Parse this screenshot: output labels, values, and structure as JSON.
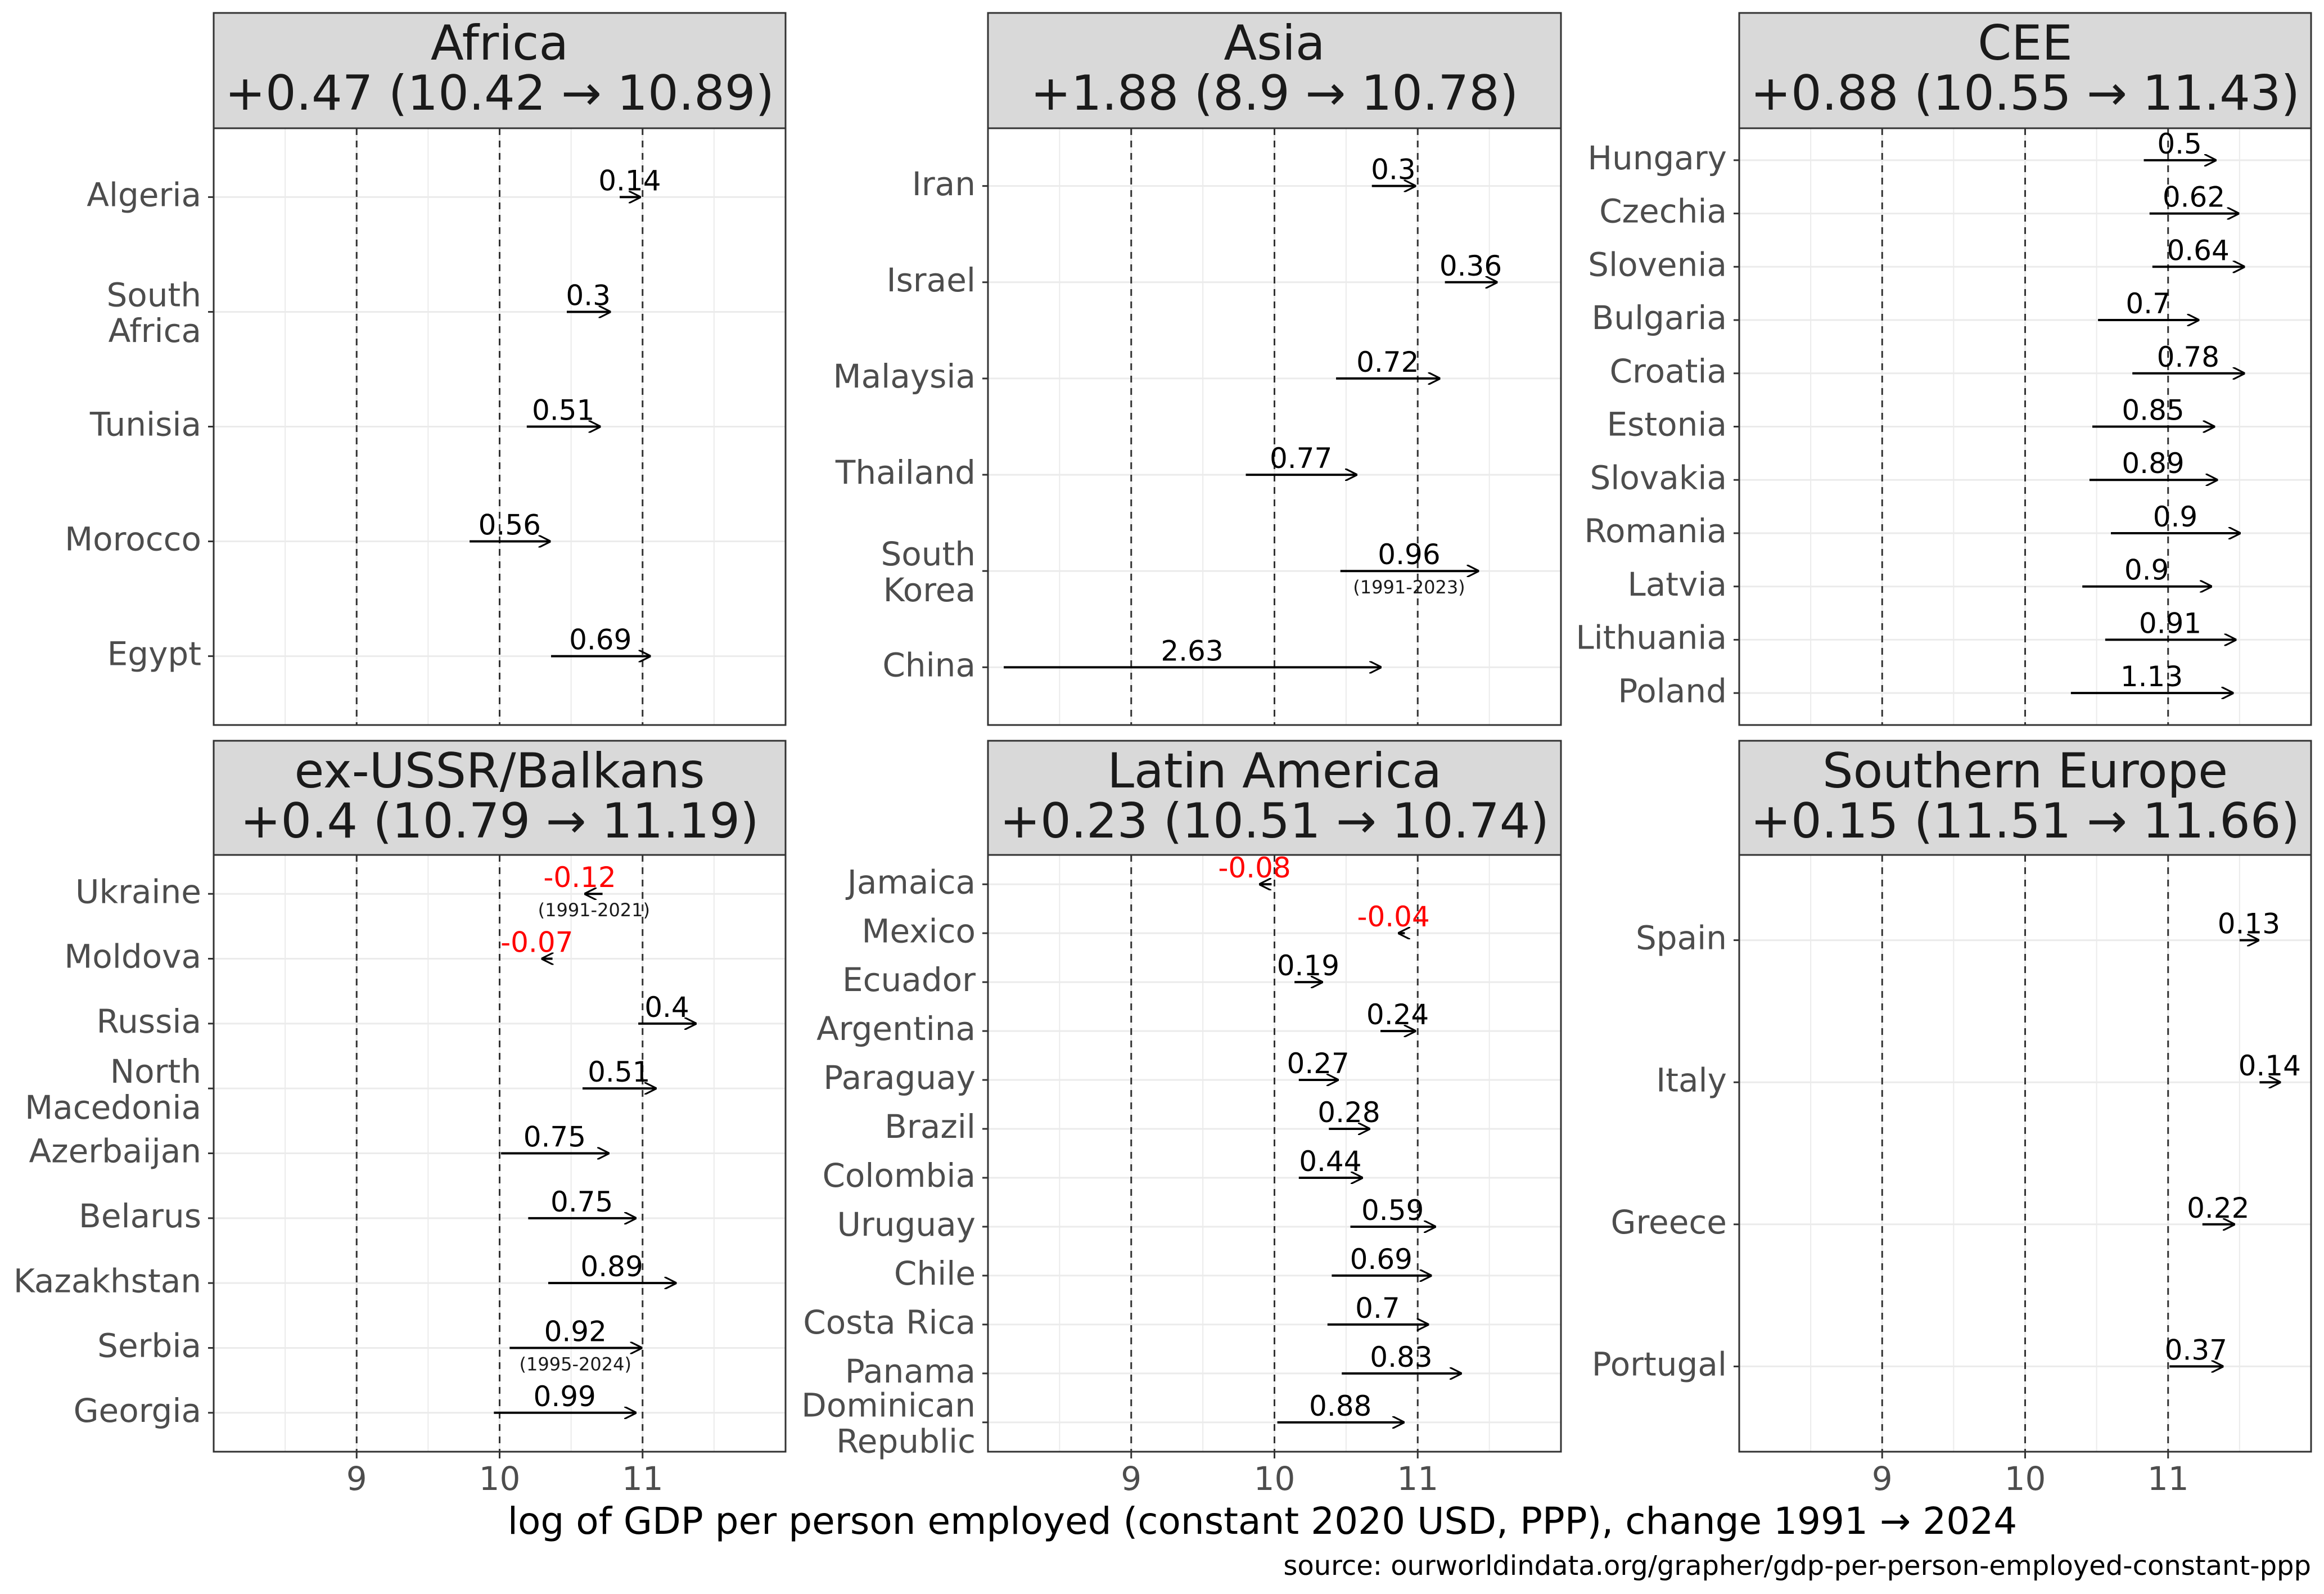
{
  "chart_data": {
    "type": "arrow-dumbbell",
    "xlabel": "log of GDP per person employed (constant 2020 USD, PPP), change 1991 → 2024",
    "source": "source: ourworldindata.org/grapher/gdp-per-person-employed-constant-ppp",
    "xlim": [
      8,
      12
    ],
    "x_ticks": [
      9,
      10,
      11
    ],
    "colors": {
      "positive": "#000000",
      "negative": "#ff0000",
      "strip_bg": "#d9d9d9",
      "grid": "#ebebeb",
      "panel_border": "#333333"
    },
    "panels": [
      {
        "name": "Africa",
        "summary": "+0.47 (10.42 → 10.89)",
        "rows": [
          {
            "country": "Egypt",
            "start": 10.36,
            "end": 11.05,
            "label": "0.69"
          },
          {
            "country": "Morocco",
            "start": 9.79,
            "end": 10.35,
            "label": "0.56"
          },
          {
            "country": "Tunisia",
            "start": 10.19,
            "end": 10.7,
            "label": "0.51"
          },
          {
            "country": "South Africa",
            "start": 10.47,
            "end": 10.77,
            "label": "0.3"
          },
          {
            "country": "Algeria",
            "start": 10.84,
            "end": 10.98,
            "label": "0.14"
          }
        ]
      },
      {
        "name": "Asia",
        "summary": "+1.88 (8.9 → 10.78)",
        "rows": [
          {
            "country": "China",
            "start": 8.11,
            "end": 10.74,
            "label": "2.63"
          },
          {
            "country": "South Korea",
            "start": 10.46,
            "end": 11.42,
            "label": "0.96",
            "note": "(1991-2023)"
          },
          {
            "country": "Thailand",
            "start": 9.8,
            "end": 10.57,
            "label": "0.77"
          },
          {
            "country": "Malaysia",
            "start": 10.43,
            "end": 11.15,
            "label": "0.72"
          },
          {
            "country": "Israel",
            "start": 11.19,
            "end": 11.55,
            "label": "0.36"
          },
          {
            "country": "Iran",
            "start": 10.68,
            "end": 10.98,
            "label": "0.3"
          }
        ]
      },
      {
        "name": "CEE",
        "summary": "+0.88 (10.55 → 11.43)",
        "rows": [
          {
            "country": "Poland",
            "start": 10.32,
            "end": 11.45,
            "label": "1.13"
          },
          {
            "country": "Lithuania",
            "start": 10.56,
            "end": 11.47,
            "label": "0.91"
          },
          {
            "country": "Latvia",
            "start": 10.4,
            "end": 11.3,
            "label": "0.9"
          },
          {
            "country": "Romania",
            "start": 10.6,
            "end": 11.5,
            "label": "0.9"
          },
          {
            "country": "Slovakia",
            "start": 10.45,
            "end": 11.34,
            "label": "0.89"
          },
          {
            "country": "Estonia",
            "start": 10.47,
            "end": 11.32,
            "label": "0.85"
          },
          {
            "country": "Croatia",
            "start": 10.75,
            "end": 11.53,
            "label": "0.78"
          },
          {
            "country": "Bulgaria",
            "start": 10.51,
            "end": 11.21,
            "label": "0.7"
          },
          {
            "country": "Slovenia",
            "start": 10.89,
            "end": 11.53,
            "label": "0.64"
          },
          {
            "country": "Czechia",
            "start": 10.87,
            "end": 11.49,
            "label": "0.62"
          },
          {
            "country": "Hungary",
            "start": 10.83,
            "end": 11.33,
            "label": "0.5"
          }
        ]
      },
      {
        "name": "ex-USSR/Balkans",
        "summary": "+0.4 (10.79 → 11.19)",
        "rows": [
          {
            "country": "Georgia",
            "start": 9.96,
            "end": 10.95,
            "label": "0.99"
          },
          {
            "country": "Serbia",
            "start": 10.07,
            "end": 10.99,
            "label": "0.92",
            "note": "(1995-2024)"
          },
          {
            "country": "Kazakhstan",
            "start": 10.34,
            "end": 11.23,
            "label": "0.89"
          },
          {
            "country": "Belarus",
            "start": 10.2,
            "end": 10.95,
            "label": "0.75"
          },
          {
            "country": "Azerbaijan",
            "start": 10.01,
            "end": 10.76,
            "label": "0.75"
          },
          {
            "country": "North Macedonia",
            "start": 10.58,
            "end": 11.09,
            "label": "0.51"
          },
          {
            "country": "Russia",
            "start": 10.97,
            "end": 11.37,
            "label": "0.4"
          },
          {
            "country": "Moldova",
            "start": 10.37,
            "end": 10.3,
            "label": "-0.07"
          },
          {
            "country": "Ukraine",
            "start": 10.72,
            "end": 10.6,
            "label": "-0.12",
            "note": "(1991-2021)"
          }
        ]
      },
      {
        "name": "Latin America",
        "summary": "+0.23 (10.51 → 10.74)",
        "rows": [
          {
            "country": "Dominican Republic",
            "start": 10.02,
            "end": 10.9,
            "label": "0.88"
          },
          {
            "country": "Panama",
            "start": 10.47,
            "end": 11.3,
            "label": "0.83"
          },
          {
            "country": "Costa Rica",
            "start": 10.37,
            "end": 11.07,
            "label": "0.7"
          },
          {
            "country": "Chile",
            "start": 10.4,
            "end": 11.09,
            "label": "0.69"
          },
          {
            "country": "Uruguay",
            "start": 10.53,
            "end": 11.12,
            "label": "0.59"
          },
          {
            "country": "Colombia",
            "start": 10.17,
            "end": 10.61,
            "label": "0.44"
          },
          {
            "country": "Brazil",
            "start": 10.38,
            "end": 10.66,
            "label": "0.28"
          },
          {
            "country": "Paraguay",
            "start": 10.17,
            "end": 10.44,
            "label": "0.27"
          },
          {
            "country": "Argentina",
            "start": 10.74,
            "end": 10.98,
            "label": "0.24"
          },
          {
            "country": "Ecuador",
            "start": 10.14,
            "end": 10.33,
            "label": "0.19"
          },
          {
            "country": "Mexico",
            "start": 10.91,
            "end": 10.87,
            "label": "-0.04"
          },
          {
            "country": "Jamaica",
            "start": 9.98,
            "end": 9.9,
            "label": "-0.08"
          }
        ]
      },
      {
        "name": "Southern Europe",
        "summary": "+0.15 (11.51 → 11.66)",
        "rows": [
          {
            "country": "Portugal",
            "start": 11.01,
            "end": 11.38,
            "label": "0.37"
          },
          {
            "country": "Greece",
            "start": 11.24,
            "end": 11.46,
            "label": "0.22"
          },
          {
            "country": "Italy",
            "start": 11.64,
            "end": 11.78,
            "label": "0.14"
          },
          {
            "country": "Spain",
            "start": 11.5,
            "end": 11.63,
            "label": "0.13"
          }
        ]
      }
    ]
  }
}
